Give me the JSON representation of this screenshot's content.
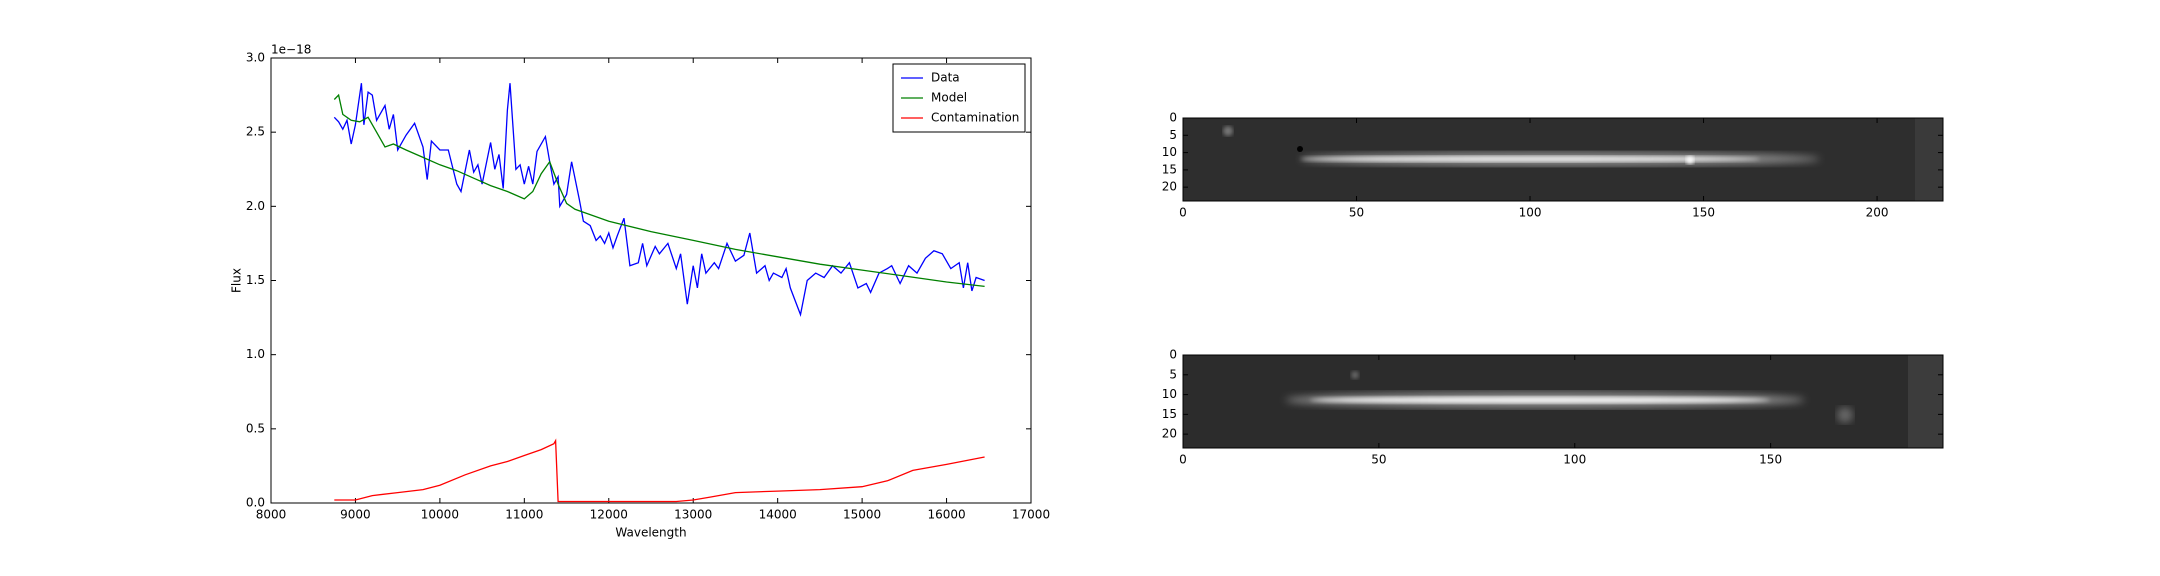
{
  "chart_data": [
    {
      "type": "line",
      "x_label": "Wavelength",
      "y_label": "Flux",
      "y_offset": "1e−18",
      "xlim": [
        8000,
        17000
      ],
      "xticks": [
        8000,
        9000,
        10000,
        11000,
        12000,
        13000,
        14000,
        15000,
        16000,
        17000
      ],
      "ylim": [
        0,
        3
      ],
      "yticks": [
        {
          "value": 0,
          "label": "0.0"
        },
        0.5,
        {
          "value": 1,
          "label": "1.0"
        },
        1.5,
        {
          "value": 2,
          "label": "2.0"
        },
        2.5,
        {
          "value": 3,
          "label": "3.0"
        }
      ],
      "legend": "upper right",
      "series": [
        {
          "name": "Data",
          "color": "#0000ff",
          "x": [
            8750,
            8800,
            8850,
            8900,
            8950,
            9000,
            9070,
            9100,
            9150,
            9200,
            9250,
            9300,
            9350,
            9400,
            9450,
            9500,
            9600,
            9700,
            9800,
            9850,
            9900,
            10000,
            10100,
            10200,
            10250,
            10350,
            10400,
            10450,
            10500,
            10600,
            10650,
            10700,
            10750,
            10800,
            10830,
            10900,
            10950,
            11000,
            11050,
            11100,
            11150,
            11250,
            11300,
            11350,
            11400,
            11420,
            11500,
            11560,
            11650,
            11700,
            11780,
            11850,
            11900,
            11950,
            12000,
            12050,
            12100,
            12180,
            12250,
            12350,
            12400,
            12450,
            12550,
            12600,
            12700,
            12800,
            12850,
            12930,
            13000,
            13050,
            13100,
            13150,
            13250,
            13300,
            13400,
            13500,
            13600,
            13670,
            13750,
            13850,
            13900,
            13950,
            14050,
            14100,
            14150,
            14270,
            14350,
            14450,
            14550,
            14650,
            14750,
            14850,
            14950,
            15050,
            15100,
            15200,
            15300,
            15350,
            15450,
            15550,
            15650,
            15750,
            15850,
            15950,
            16050,
            16150,
            16200,
            16250,
            16300,
            16350,
            16450
          ],
          "values": [
            2.6,
            2.57,
            2.52,
            2.58,
            2.42,
            2.55,
            2.83,
            2.55,
            2.77,
            2.75,
            2.58,
            2.63,
            2.68,
            2.52,
            2.62,
            2.38,
            2.48,
            2.56,
            2.4,
            2.18,
            2.44,
            2.38,
            2.38,
            2.15,
            2.1,
            2.38,
            2.23,
            2.28,
            2.15,
            2.43,
            2.25,
            2.35,
            2.12,
            2.65,
            2.83,
            2.25,
            2.28,
            2.15,
            2.27,
            2.15,
            2.37,
            2.47,
            2.3,
            2.15,
            2.2,
            2.0,
            2.08,
            2.3,
            2.05,
            1.9,
            1.87,
            1.77,
            1.8,
            1.75,
            1.82,
            1.72,
            1.8,
            1.92,
            1.6,
            1.62,
            1.75,
            1.6,
            1.73,
            1.68,
            1.75,
            1.58,
            1.68,
            1.34,
            1.6,
            1.45,
            1.68,
            1.55,
            1.62,
            1.58,
            1.75,
            1.63,
            1.67,
            1.82,
            1.55,
            1.6,
            1.5,
            1.55,
            1.52,
            1.58,
            1.45,
            1.27,
            1.5,
            1.55,
            1.52,
            1.6,
            1.55,
            1.62,
            1.45,
            1.48,
            1.42,
            1.55,
            1.58,
            1.6,
            1.48,
            1.6,
            1.55,
            1.65,
            1.7,
            1.68,
            1.58,
            1.62,
            1.45,
            1.62,
            1.43,
            1.52,
            1.5
          ]
        },
        {
          "name": "Model",
          "color": "#008000",
          "x": [
            8750,
            8800,
            8850,
            8950,
            9050,
            9150,
            9250,
            9350,
            9450,
            9600,
            9800,
            10000,
            10200,
            10400,
            10600,
            10800,
            11000,
            11100,
            11200,
            11300,
            11400,
            11500,
            11600,
            11800,
            12000,
            12500,
            13000,
            13500,
            14000,
            14500,
            15000,
            15500,
            16000,
            16450
          ],
          "values": [
            2.72,
            2.75,
            2.62,
            2.58,
            2.57,
            2.6,
            2.5,
            2.4,
            2.42,
            2.38,
            2.33,
            2.28,
            2.24,
            2.19,
            2.14,
            2.1,
            2.05,
            2.1,
            2.22,
            2.3,
            2.15,
            2.02,
            1.98,
            1.94,
            1.9,
            1.83,
            1.77,
            1.71,
            1.66,
            1.61,
            1.57,
            1.53,
            1.49,
            1.46
          ]
        },
        {
          "name": "Contamination",
          "color": "#ff0000",
          "x": [
            8750,
            9000,
            9200,
            9500,
            9800,
            10000,
            10300,
            10600,
            10800,
            11000,
            11200,
            11350,
            11370,
            11400,
            12000,
            12800,
            13000,
            13200,
            13500,
            14000,
            14500,
            15000,
            15300,
            15600,
            16000,
            16450
          ],
          "values": [
            0.02,
            0.02,
            0.05,
            0.07,
            0.09,
            0.12,
            0.19,
            0.25,
            0.28,
            0.32,
            0.36,
            0.4,
            0.42,
            0.01,
            0.01,
            0.01,
            0.02,
            0.04,
            0.07,
            0.08,
            0.09,
            0.11,
            0.15,
            0.22,
            0.26,
            0.31
          ]
        }
      ]
    },
    {
      "type": "image",
      "xlim": [
        0,
        219
      ],
      "xticks": [
        0,
        50,
        100,
        150,
        200
      ],
      "ylim": [
        24,
        0
      ],
      "yticks": [
        0,
        5,
        10,
        15,
        20
      ]
    },
    {
      "type": "image",
      "xlim": [
        0,
        194
      ],
      "xticks": [
        0,
        50,
        100,
        150
      ],
      "ylim": [
        23.5,
        0
      ],
      "yticks": [
        0,
        5,
        10,
        15,
        20
      ]
    }
  ]
}
